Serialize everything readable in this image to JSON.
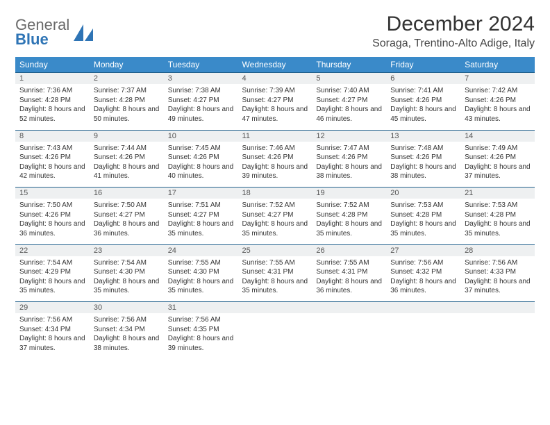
{
  "logo": {
    "word1": "General",
    "word2": "Blue"
  },
  "title": "December 2024",
  "location": "Soraga, Trentino-Alto Adige, Italy",
  "colors": {
    "header_bg": "#3a8ac9",
    "header_text": "#ffffff",
    "daynum_bg": "#eef0f1",
    "rule": "#1f5f8b",
    "logo_gray": "#6a6a6a",
    "logo_blue": "#2e74b5"
  },
  "weekdays": [
    "Sunday",
    "Monday",
    "Tuesday",
    "Wednesday",
    "Thursday",
    "Friday",
    "Saturday"
  ],
  "weeks": [
    [
      {
        "n": "1",
        "sr": "7:36 AM",
        "ss": "4:28 PM",
        "dl": "8 hours and 52 minutes."
      },
      {
        "n": "2",
        "sr": "7:37 AM",
        "ss": "4:28 PM",
        "dl": "8 hours and 50 minutes."
      },
      {
        "n": "3",
        "sr": "7:38 AM",
        "ss": "4:27 PM",
        "dl": "8 hours and 49 minutes."
      },
      {
        "n": "4",
        "sr": "7:39 AM",
        "ss": "4:27 PM",
        "dl": "8 hours and 47 minutes."
      },
      {
        "n": "5",
        "sr": "7:40 AM",
        "ss": "4:27 PM",
        "dl": "8 hours and 46 minutes."
      },
      {
        "n": "6",
        "sr": "7:41 AM",
        "ss": "4:26 PM",
        "dl": "8 hours and 45 minutes."
      },
      {
        "n": "7",
        "sr": "7:42 AM",
        "ss": "4:26 PM",
        "dl": "8 hours and 43 minutes."
      }
    ],
    [
      {
        "n": "8",
        "sr": "7:43 AM",
        "ss": "4:26 PM",
        "dl": "8 hours and 42 minutes."
      },
      {
        "n": "9",
        "sr": "7:44 AM",
        "ss": "4:26 PM",
        "dl": "8 hours and 41 minutes."
      },
      {
        "n": "10",
        "sr": "7:45 AM",
        "ss": "4:26 PM",
        "dl": "8 hours and 40 minutes."
      },
      {
        "n": "11",
        "sr": "7:46 AM",
        "ss": "4:26 PM",
        "dl": "8 hours and 39 minutes."
      },
      {
        "n": "12",
        "sr": "7:47 AM",
        "ss": "4:26 PM",
        "dl": "8 hours and 38 minutes."
      },
      {
        "n": "13",
        "sr": "7:48 AM",
        "ss": "4:26 PM",
        "dl": "8 hours and 38 minutes."
      },
      {
        "n": "14",
        "sr": "7:49 AM",
        "ss": "4:26 PM",
        "dl": "8 hours and 37 minutes."
      }
    ],
    [
      {
        "n": "15",
        "sr": "7:50 AM",
        "ss": "4:26 PM",
        "dl": "8 hours and 36 minutes."
      },
      {
        "n": "16",
        "sr": "7:50 AM",
        "ss": "4:27 PM",
        "dl": "8 hours and 36 minutes."
      },
      {
        "n": "17",
        "sr": "7:51 AM",
        "ss": "4:27 PM",
        "dl": "8 hours and 35 minutes."
      },
      {
        "n": "18",
        "sr": "7:52 AM",
        "ss": "4:27 PM",
        "dl": "8 hours and 35 minutes."
      },
      {
        "n": "19",
        "sr": "7:52 AM",
        "ss": "4:28 PM",
        "dl": "8 hours and 35 minutes."
      },
      {
        "n": "20",
        "sr": "7:53 AM",
        "ss": "4:28 PM",
        "dl": "8 hours and 35 minutes."
      },
      {
        "n": "21",
        "sr": "7:53 AM",
        "ss": "4:28 PM",
        "dl": "8 hours and 35 minutes."
      }
    ],
    [
      {
        "n": "22",
        "sr": "7:54 AM",
        "ss": "4:29 PM",
        "dl": "8 hours and 35 minutes."
      },
      {
        "n": "23",
        "sr": "7:54 AM",
        "ss": "4:30 PM",
        "dl": "8 hours and 35 minutes."
      },
      {
        "n": "24",
        "sr": "7:55 AM",
        "ss": "4:30 PM",
        "dl": "8 hours and 35 minutes."
      },
      {
        "n": "25",
        "sr": "7:55 AM",
        "ss": "4:31 PM",
        "dl": "8 hours and 35 minutes."
      },
      {
        "n": "26",
        "sr": "7:55 AM",
        "ss": "4:31 PM",
        "dl": "8 hours and 36 minutes."
      },
      {
        "n": "27",
        "sr": "7:56 AM",
        "ss": "4:32 PM",
        "dl": "8 hours and 36 minutes."
      },
      {
        "n": "28",
        "sr": "7:56 AM",
        "ss": "4:33 PM",
        "dl": "8 hours and 37 minutes."
      }
    ],
    [
      {
        "n": "29",
        "sr": "7:56 AM",
        "ss": "4:34 PM",
        "dl": "8 hours and 37 minutes."
      },
      {
        "n": "30",
        "sr": "7:56 AM",
        "ss": "4:34 PM",
        "dl": "8 hours and 38 minutes."
      },
      {
        "n": "31",
        "sr": "7:56 AM",
        "ss": "4:35 PM",
        "dl": "8 hours and 39 minutes."
      },
      null,
      null,
      null,
      null
    ]
  ],
  "labels": {
    "sunrise": "Sunrise: ",
    "sunset": "Sunset: ",
    "daylight": "Daylight: "
  }
}
